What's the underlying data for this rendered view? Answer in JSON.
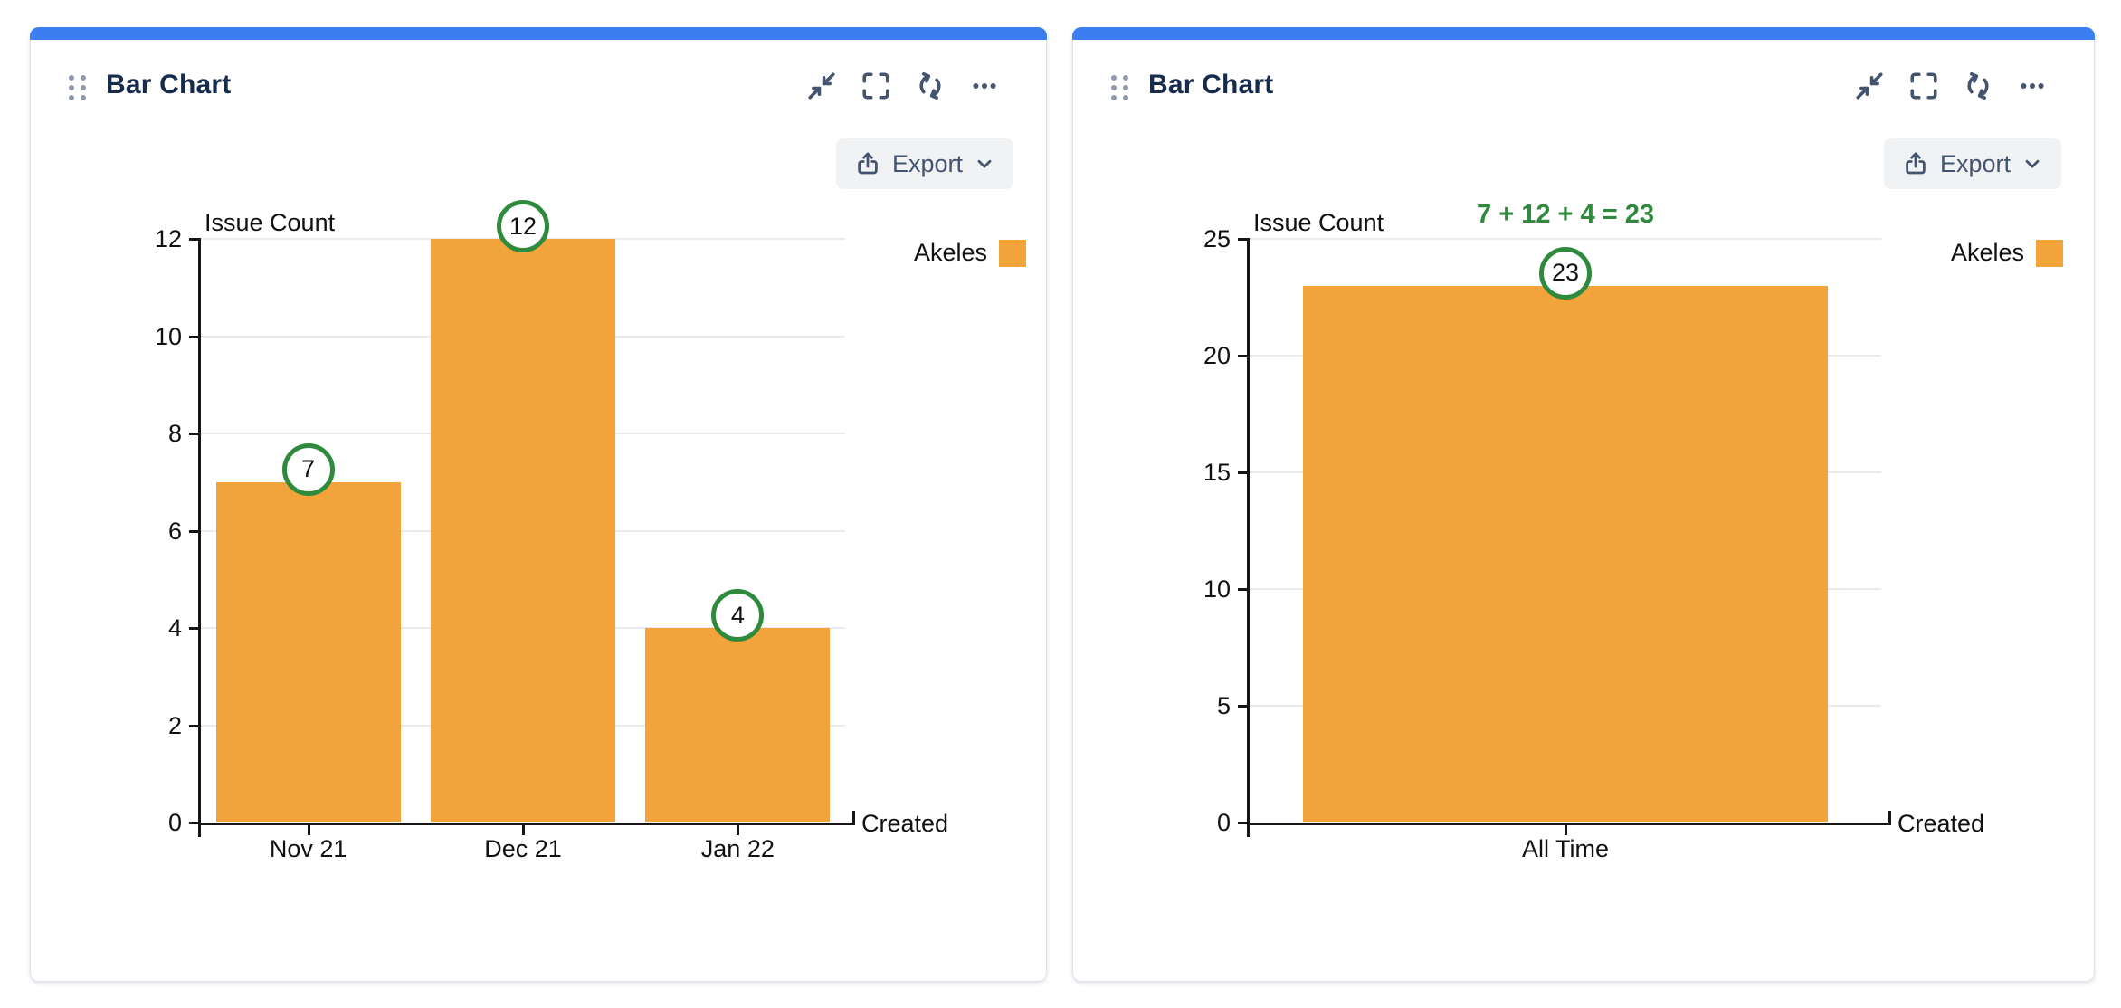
{
  "colors": {
    "accent_blue": "#3D7DF2",
    "bar_orange": "#F2A33C",
    "annotation_green": "#2F8A3D",
    "header_text": "#172B4D",
    "icon_gray": "#44546F"
  },
  "cards": [
    {
      "title": "Bar Chart",
      "header_icons": [
        {
          "name": "collapse"
        },
        {
          "name": "fullscreen"
        },
        {
          "name": "refresh"
        },
        {
          "name": "more"
        }
      ],
      "export": {
        "label": "Export"
      },
      "legend": {
        "label": "Akeles"
      }
    },
    {
      "title": "Bar Chart",
      "header_icons": [
        {
          "name": "collapse"
        },
        {
          "name": "fullscreen"
        },
        {
          "name": "refresh"
        },
        {
          "name": "more"
        }
      ],
      "export": {
        "label": "Export"
      },
      "legend": {
        "label": "Akeles"
      }
    }
  ],
  "chart_data": [
    {
      "type": "bar",
      "ylabel": "Issue Count",
      "xlabel": "Created",
      "categories": [
        "Nov 21",
        "Dec 21",
        "Jan 22"
      ],
      "series": [
        {
          "name": "Akeles",
          "values": [
            7,
            12,
            4
          ],
          "color": "#F2A33C"
        }
      ],
      "data_labels": [
        7,
        12,
        4
      ],
      "yticks": [
        0,
        2,
        4,
        6,
        8,
        10,
        12
      ],
      "ylim": [
        0,
        12
      ],
      "grid": true,
      "legend_position": "top-right",
      "annotation_style": "green-circle"
    },
    {
      "type": "bar",
      "ylabel": "Issue Count",
      "xlabel": "Created",
      "categories": [
        "All Time"
      ],
      "series": [
        {
          "name": "Akeles",
          "values": [
            23
          ],
          "color": "#F2A33C"
        }
      ],
      "data_labels": [
        23
      ],
      "annotation_text": "7 + 12 + 4 = 23",
      "yticks": [
        0,
        5,
        10,
        15,
        20,
        25
      ],
      "ylim": [
        0,
        25
      ],
      "grid": true,
      "legend_position": "top-right",
      "annotation_style": "green-circle"
    }
  ]
}
